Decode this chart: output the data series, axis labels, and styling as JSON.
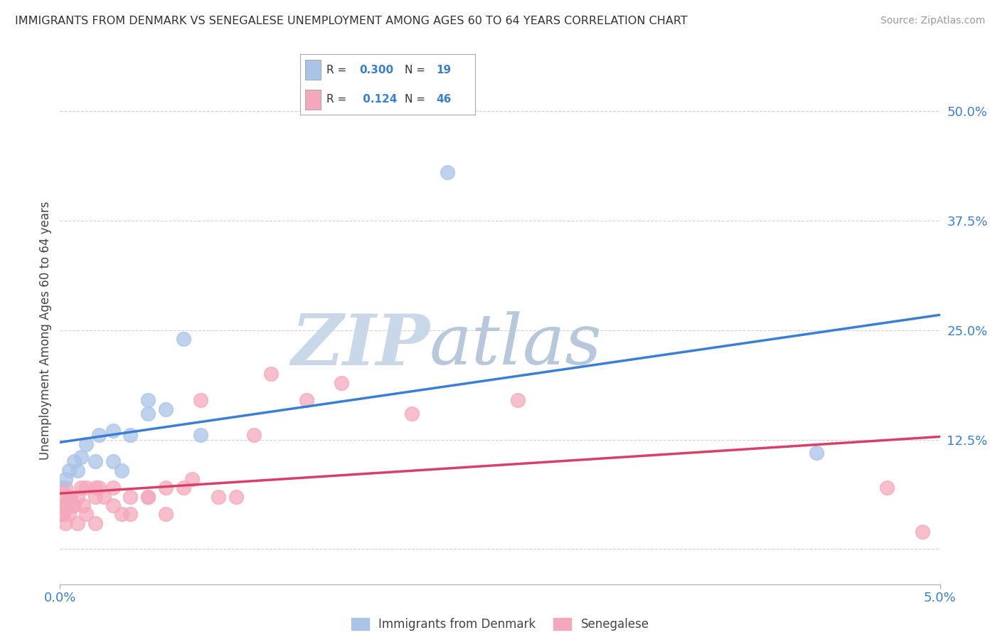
{
  "title": "IMMIGRANTS FROM DENMARK VS SENEGALESE UNEMPLOYMENT AMONG AGES 60 TO 64 YEARS CORRELATION CHART",
  "source": "Source: ZipAtlas.com",
  "ylabel": "Unemployment Among Ages 60 to 64 years",
  "xlim": [
    0.0,
    0.05
  ],
  "ylim": [
    -0.04,
    0.54
  ],
  "yticks": [
    0.0,
    0.125,
    0.25,
    0.375,
    0.5
  ],
  "ytick_labels": [
    "",
    "12.5%",
    "25.0%",
    "37.5%",
    "50.0%"
  ],
  "xticks": [
    0.0,
    0.05
  ],
  "xtick_labels": [
    "0.0%",
    "5.0%"
  ],
  "blue_R": 0.3,
  "blue_N": 19,
  "pink_R": 0.124,
  "pink_N": 46,
  "blue_color": "#aac4e8",
  "pink_color": "#f5a8bc",
  "blue_line_color": "#3a7fd4",
  "pink_line_color": "#d94068",
  "blue_scatter_x": [
    0.0003,
    0.0005,
    0.0008,
    0.001,
    0.0012,
    0.0015,
    0.002,
    0.0022,
    0.003,
    0.003,
    0.0035,
    0.004,
    0.005,
    0.005,
    0.006,
    0.007,
    0.008,
    0.022,
    0.043
  ],
  "blue_scatter_y": [
    0.08,
    0.09,
    0.1,
    0.09,
    0.105,
    0.12,
    0.1,
    0.13,
    0.1,
    0.135,
    0.09,
    0.13,
    0.155,
    0.17,
    0.16,
    0.24,
    0.13,
    0.43,
    0.11
  ],
  "pink_scatter_x": [
    0.0001,
    0.0001,
    0.0001,
    0.0002,
    0.0002,
    0.0003,
    0.0003,
    0.0004,
    0.0005,
    0.0005,
    0.0006,
    0.0007,
    0.0008,
    0.001,
    0.001,
    0.0012,
    0.0013,
    0.0015,
    0.0015,
    0.002,
    0.002,
    0.002,
    0.0022,
    0.0025,
    0.003,
    0.003,
    0.0035,
    0.004,
    0.004,
    0.005,
    0.005,
    0.006,
    0.006,
    0.007,
    0.0075,
    0.008,
    0.009,
    0.01,
    0.011,
    0.012,
    0.014,
    0.016,
    0.02,
    0.026,
    0.047,
    0.049
  ],
  "pink_scatter_y": [
    0.07,
    0.05,
    0.04,
    0.06,
    0.04,
    0.07,
    0.03,
    0.05,
    0.06,
    0.04,
    0.06,
    0.05,
    0.05,
    0.06,
    0.03,
    0.07,
    0.05,
    0.07,
    0.04,
    0.07,
    0.03,
    0.06,
    0.07,
    0.06,
    0.05,
    0.07,
    0.04,
    0.06,
    0.04,
    0.06,
    0.06,
    0.07,
    0.04,
    0.07,
    0.08,
    0.17,
    0.06,
    0.06,
    0.13,
    0.2,
    0.17,
    0.19,
    0.155,
    0.17,
    0.07,
    0.02
  ],
  "background_color": "#ffffff",
  "grid_color": "#cccccc",
  "watermark_zip": "ZIP",
  "watermark_atlas": "atlas",
  "watermark_color_zip": "#c8d8e8",
  "watermark_color_atlas": "#c8d8e8"
}
